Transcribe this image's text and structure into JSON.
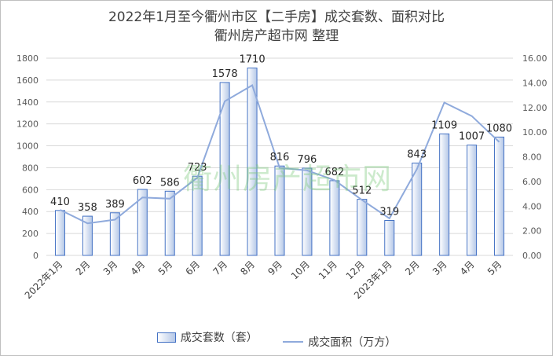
{
  "title_line1": "2022年1月至今衢州市区【二手房】成交套数、面积对比",
  "title_line2": "衢州房产超市网 整理",
  "watermark": "衢州房产超市网",
  "colors": {
    "bar_stroke": "#4472c4",
    "bar_fill_light": "#ffffff",
    "bar_fill_dark": "#b4c7e7",
    "line": "#8faadc",
    "grid": "#d9d9d9",
    "text": "#404040"
  },
  "chart_data": {
    "type": "bar+line",
    "categories": [
      "2022年1月",
      "2月",
      "3月",
      "4月",
      "5月",
      "6月",
      "7月",
      "8月",
      "9月",
      "10月",
      "11月",
      "12月",
      "2023年1月",
      "2月",
      "3月",
      "4月",
      "5月"
    ],
    "series": [
      {
        "name": "成交套数（套）",
        "type": "bar",
        "axis": "left",
        "values": [
          410,
          358,
          389,
          602,
          586,
          723,
          1578,
          1710,
          816,
          796,
          682,
          512,
          319,
          843,
          1109,
          1007,
          1080
        ]
      },
      {
        "name": "成交面积（万方）",
        "type": "line",
        "axis": "right",
        "values": [
          3.7,
          2.6,
          2.9,
          4.7,
          4.6,
          6.3,
          12.5,
          13.8,
          7.1,
          6.9,
          6.1,
          4.5,
          3.0,
          7.0,
          12.4,
          11.3,
          9.2
        ]
      }
    ],
    "y_left": {
      "min": 0,
      "max": 1800,
      "ticks": [
        "0",
        "200",
        "400",
        "600",
        "800",
        "1000",
        "1200",
        "1400",
        "1600",
        "1800"
      ]
    },
    "y_right": {
      "min": 0,
      "max": 16,
      "ticks": [
        "0.00",
        "2.00",
        "4.00",
        "6.00",
        "8.00",
        "10.00",
        "12.00",
        "14.00",
        "16.00"
      ]
    },
    "grid": true,
    "legend_position": "bottom"
  }
}
